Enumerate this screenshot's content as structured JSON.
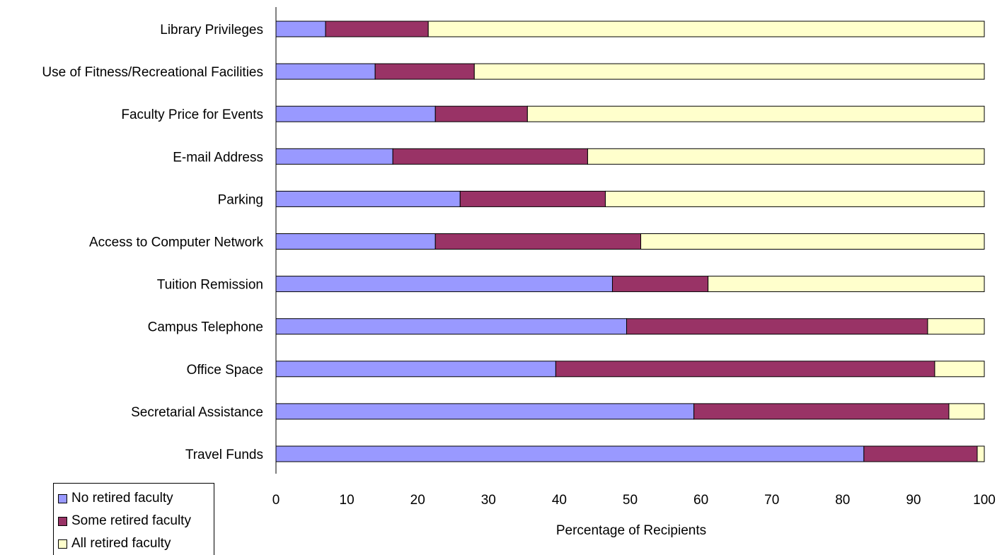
{
  "chart_data": {
    "type": "bar",
    "orientation": "horizontal",
    "stacked": true,
    "categories": [
      "Library Privileges",
      "Use of Fitness/Recreational Facilities",
      "Faculty Price for Events",
      "E-mail Address",
      "Parking",
      "Access to Computer Network",
      "Tuition Remission",
      "Campus Telephone",
      "Office Space",
      "Secretarial Assistance",
      "Travel Funds"
    ],
    "series": [
      {
        "name": "No retired faculty",
        "color": "#9999ff",
        "values": [
          7,
          14,
          22.5,
          16.5,
          26,
          22.5,
          47.5,
          49.5,
          39.5,
          59,
          83
        ]
      },
      {
        "name": "Some retired faculty",
        "color": "#993366",
        "values": [
          14.5,
          14,
          13,
          27.5,
          20.5,
          29,
          13.5,
          42.5,
          53.5,
          36,
          16
        ]
      },
      {
        "name": "All retired faculty",
        "color": "#ffffcc",
        "values": [
          78.5,
          72,
          64.5,
          56,
          53.5,
          48.5,
          39,
          8,
          7,
          5,
          1
        ]
      }
    ],
    "xlabel": "Percentage of Recipients",
    "ylabel": "",
    "xlim": [
      0,
      100
    ],
    "xticks": [
      "0",
      "10",
      "20",
      "30",
      "40",
      "50",
      "60",
      "70",
      "80",
      "90",
      "100"
    ],
    "grid": false,
    "legend_position": "bottom-left"
  }
}
